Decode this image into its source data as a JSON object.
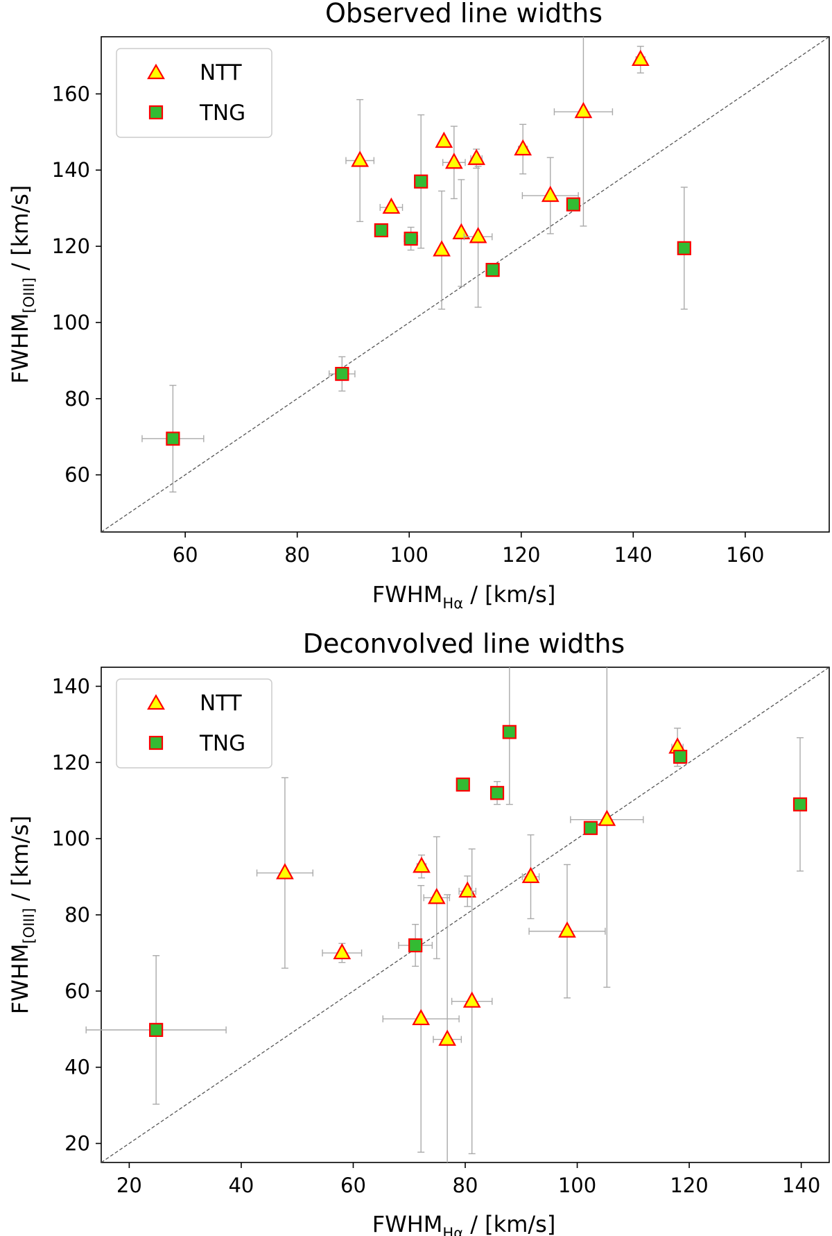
{
  "colors": {
    "ntt_face": "#ffff00",
    "ntt_edge": "#ff0000",
    "tng_face": "#33bb33",
    "tng_edge": "#ff0000",
    "errorbar": "#aaaaaa",
    "diagonal": "#555555"
  },
  "chart_data": [
    {
      "type": "scatter",
      "title": "Observed line widths",
      "xlabel_main": "FWHM",
      "xlabel_sub": "Hα",
      "xlabel_unit": " / [km/s]",
      "ylabel_main": "FWHM",
      "ylabel_sub": "[OIII]",
      "ylabel_unit": " / [km/s]",
      "xlim": [
        45,
        175
      ],
      "ylim": [
        45,
        175
      ],
      "xticks": [
        60,
        80,
        100,
        120,
        140,
        160
      ],
      "yticks": [
        60,
        80,
        100,
        120,
        140,
        160
      ],
      "grid": false,
      "diagonal": "y = x",
      "legend_placement": "top-left",
      "series": [
        {
          "name": "NTT",
          "marker": "triangle",
          "points": [
            {
              "x": 91.2,
              "y": 142.5,
              "xerr": 2.5,
              "yerr": 16
            },
            {
              "x": 96.8,
              "y": 130.2,
              "xerr": 2,
              "yerr": 0
            },
            {
              "x": 105.8,
              "y": 119.0,
              "xerr": 0,
              "yerr": 15.5
            },
            {
              "x": 106.2,
              "y": 147.5,
              "xerr": 0,
              "yerr": 0
            },
            {
              "x": 108.0,
              "y": 142.0,
              "xerr": 2,
              "yerr": 9.5
            },
            {
              "x": 109.3,
              "y": 123.5,
              "xerr": 0,
              "yerr": 14
            },
            {
              "x": 112.0,
              "y": 143.0,
              "xerr": 1,
              "yerr": 2.5
            },
            {
              "x": 112.3,
              "y": 122.5,
              "xerr": 2.5,
              "yerr": 18.5
            },
            {
              "x": 120.3,
              "y": 145.5,
              "xerr": 0.8,
              "yerr": 6.5
            },
            {
              "x": 125.2,
              "y": 133.3,
              "xerr": 5,
              "yerr": 10
            },
            {
              "x": 131.1,
              "y": 155.3,
              "xerr": 5.2,
              "yerr": 30
            },
            {
              "x": 141.3,
              "y": 169.0,
              "xerr": 0.8,
              "yerr": 3.5
            }
          ]
        },
        {
          "name": "TNG",
          "marker": "square",
          "points": [
            {
              "x": 57.8,
              "y": 69.5,
              "xerr": 5.5,
              "yerr": 14
            },
            {
              "x": 88.0,
              "y": 86.5,
              "xerr": 2.3,
              "yerr": 4.5
            },
            {
              "x": 95.0,
              "y": 124.2,
              "xerr": 0.5,
              "yerr": 0
            },
            {
              "x": 100.3,
              "y": 122.0,
              "xerr": 1.2,
              "yerr": 3
            },
            {
              "x": 102.1,
              "y": 137.0,
              "xerr": 0,
              "yerr": 17.5
            },
            {
              "x": 114.9,
              "y": 113.8,
              "xerr": 0,
              "yerr": 0
            },
            {
              "x": 129.3,
              "y": 131.0,
              "xerr": 0,
              "yerr": 0
            },
            {
              "x": 149.1,
              "y": 119.5,
              "xerr": 0.8,
              "yerr": 16
            }
          ]
        }
      ]
    },
    {
      "type": "scatter",
      "title": "Deconvolved line widths",
      "xlabel_main": "FWHM",
      "xlabel_sub": "Hα",
      "xlabel_unit": " / [km/s]",
      "ylabel_main": "FWHM",
      "ylabel_sub": "[OIII]",
      "ylabel_unit": " / [km/s]",
      "xlim": [
        15,
        145
      ],
      "ylim": [
        15,
        145
      ],
      "xticks": [
        20,
        40,
        60,
        80,
        100,
        120,
        140
      ],
      "yticks": [
        20,
        40,
        60,
        80,
        100,
        120,
        140
      ],
      "grid": false,
      "diagonal": "y = x",
      "legend_placement": "top-left",
      "series": [
        {
          "name": "NTT",
          "marker": "triangle",
          "points": [
            {
              "x": 47.8,
              "y": 91.0,
              "xerr": 5,
              "yerr": 25
            },
            {
              "x": 58.0,
              "y": 70.0,
              "xerr": 3.5,
              "yerr": 2.5
            },
            {
              "x": 72.2,
              "y": 92.7,
              "xerr": 0.8,
              "yerr": 3
            },
            {
              "x": 72.1,
              "y": 52.7,
              "xerr": 6.8,
              "yerr": 35
            },
            {
              "x": 74.9,
              "y": 84.5,
              "xerr": 2.3,
              "yerr": 16
            },
            {
              "x": 76.8,
              "y": 47.3,
              "xerr": 2.5,
              "yerr": 38
            },
            {
              "x": 80.4,
              "y": 86.2,
              "xerr": 1.5,
              "yerr": 4
            },
            {
              "x": 81.2,
              "y": 57.3,
              "xerr": 3.6,
              "yerr": 40
            },
            {
              "x": 91.7,
              "y": 90.0,
              "xerr": 1.5,
              "yerr": 11
            },
            {
              "x": 98.2,
              "y": 75.7,
              "xerr": 6.8,
              "yerr": 17.5
            },
            {
              "x": 105.3,
              "y": 105.0,
              "xerr": 6.5,
              "yerr": 44
            },
            {
              "x": 117.9,
              "y": 124.0,
              "xerr": 1,
              "yerr": 5
            }
          ]
        },
        {
          "name": "TNG",
          "marker": "square",
          "points": [
            {
              "x": 24.8,
              "y": 49.8,
              "xerr": 12.5,
              "yerr": 19.5
            },
            {
              "x": 71.1,
              "y": 72.0,
              "xerr": 3,
              "yerr": 5.5
            },
            {
              "x": 79.6,
              "y": 114.2,
              "xerr": 0.8,
              "yerr": 0
            },
            {
              "x": 85.7,
              "y": 112.0,
              "xerr": 0.8,
              "yerr": 3
            },
            {
              "x": 87.9,
              "y": 128.0,
              "xerr": 0,
              "yerr": 19
            },
            {
              "x": 102.4,
              "y": 102.8,
              "xerr": 0,
              "yerr": 0
            },
            {
              "x": 118.4,
              "y": 121.5,
              "xerr": 0.8,
              "yerr": 0
            },
            {
              "x": 139.8,
              "y": 109.0,
              "xerr": 0.8,
              "yerr": 17.5
            }
          ]
        }
      ]
    }
  ]
}
